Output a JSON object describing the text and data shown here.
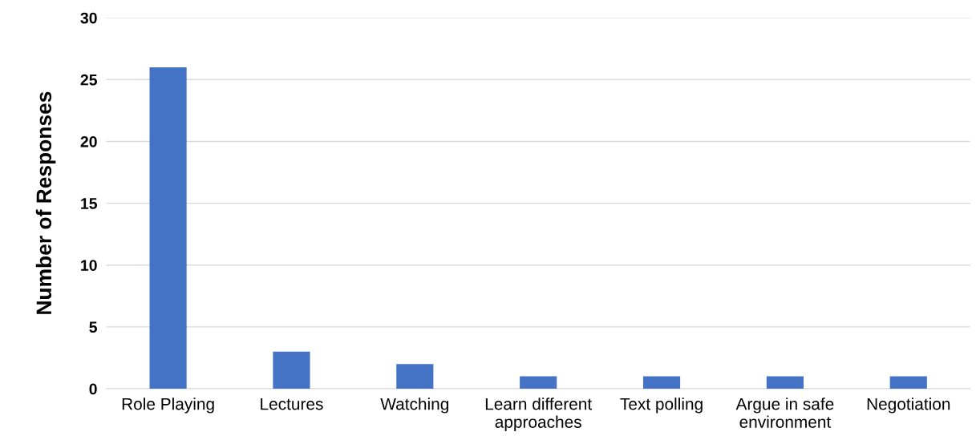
{
  "chart_data": {
    "type": "bar",
    "ylabel": "Number of Responses",
    "categories": [
      "Role Playing",
      "Lectures",
      "Watching",
      "Learn different\napproaches",
      "Text polling",
      "Argue in safe\nenvironment",
      "Negotiation"
    ],
    "values": [
      26,
      3,
      2,
      1,
      1,
      1,
      1
    ],
    "color": "#4472c4",
    "ylim": [
      0,
      30
    ],
    "yticks": [
      0,
      5,
      10,
      15,
      20,
      25,
      30
    ],
    "grid": "y",
    "legend": false
  }
}
